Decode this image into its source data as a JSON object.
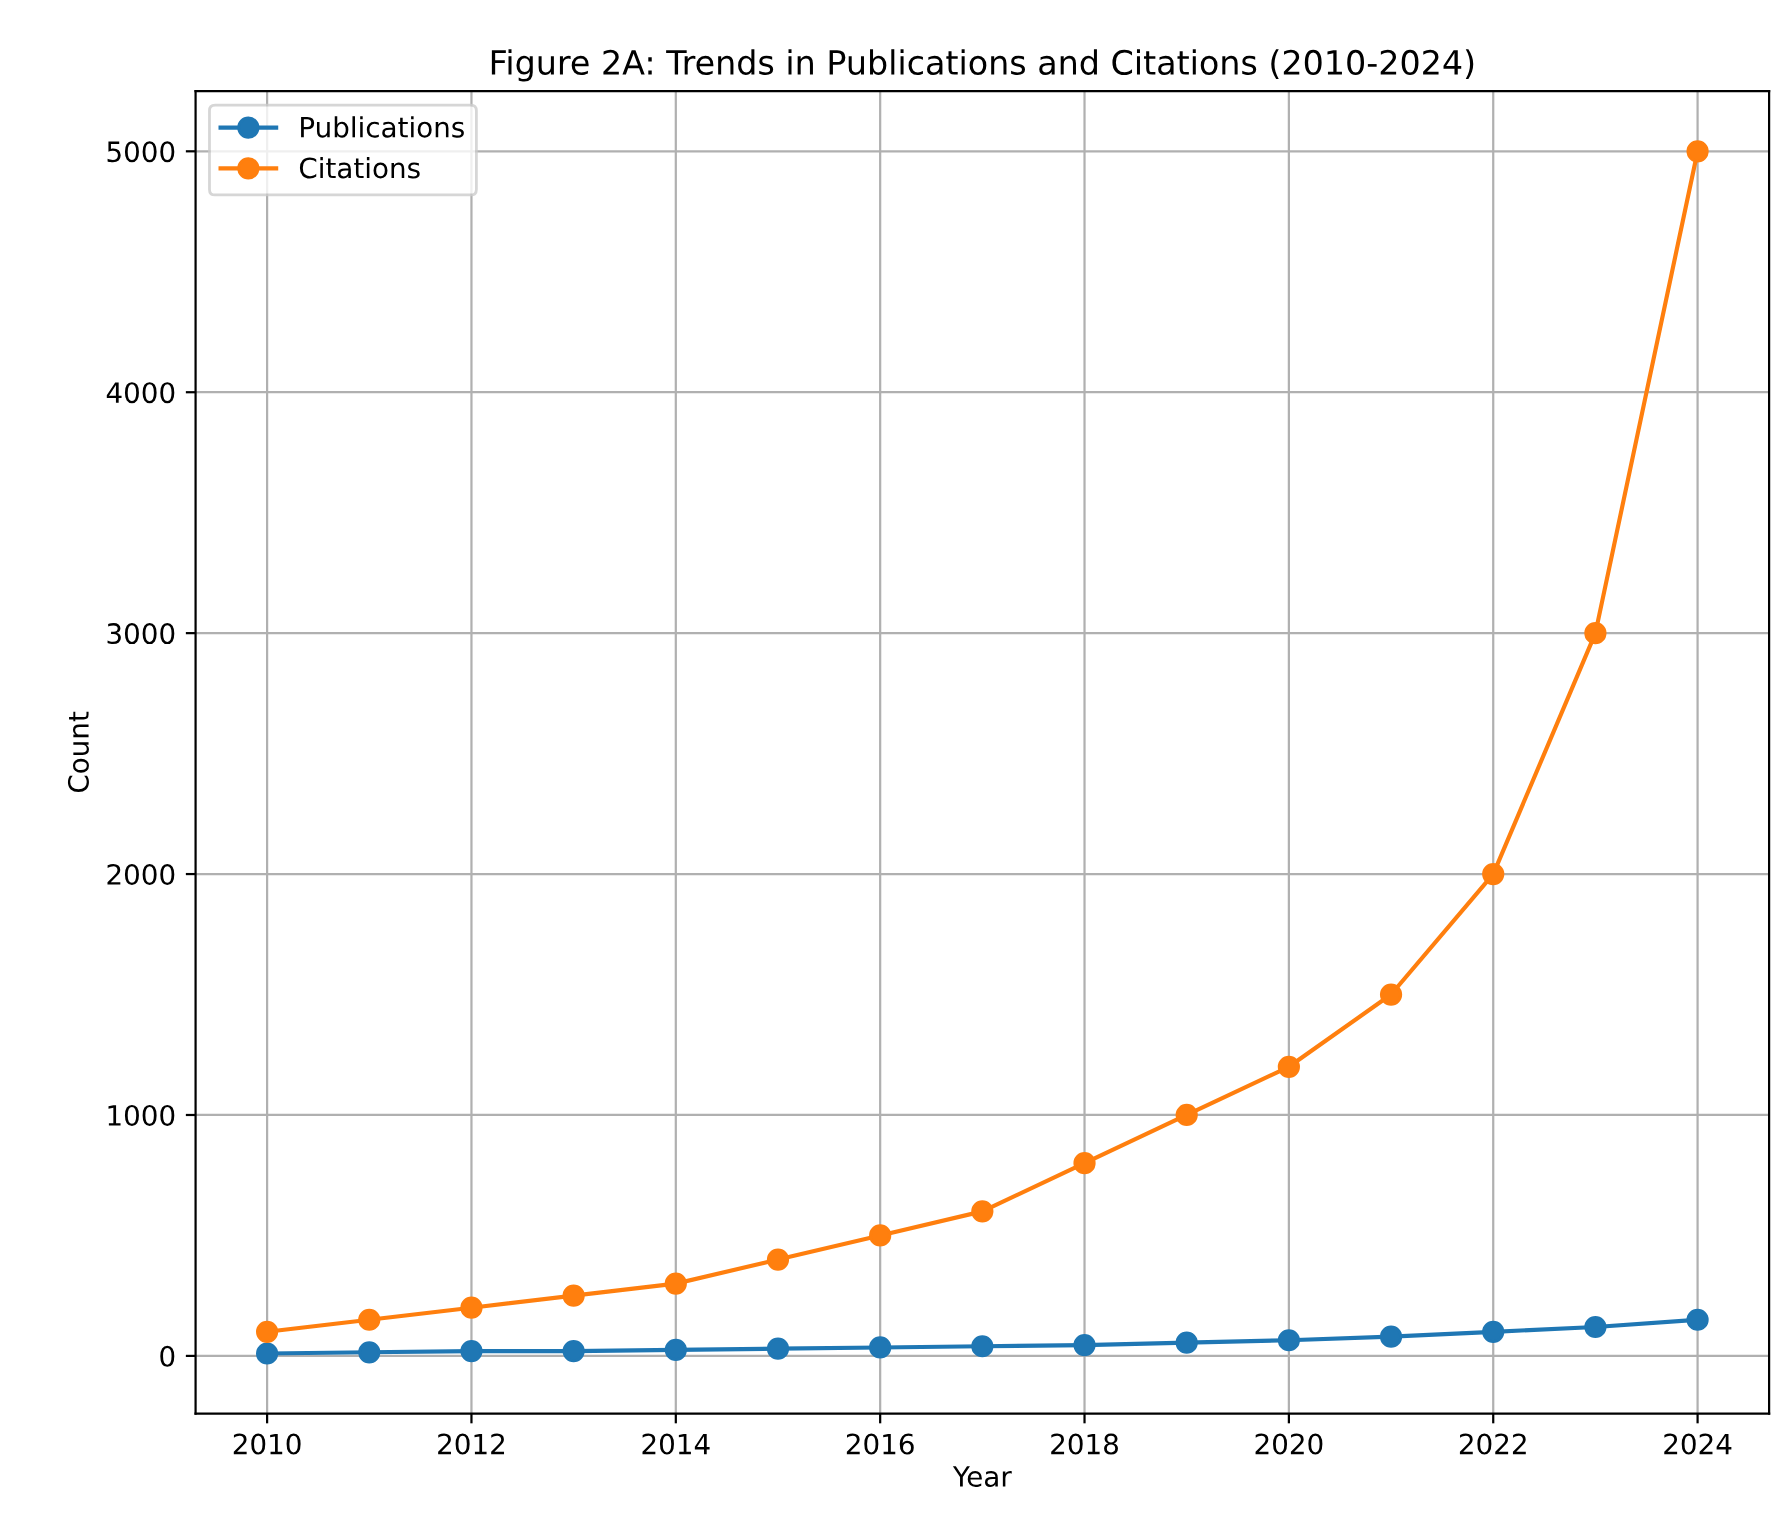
{
  "chart_data": {
    "type": "line",
    "title": "Figure 2A: Trends in Publications and Citations (2010-2024)",
    "xlabel": "Year",
    "ylabel": "Count",
    "x": [
      2010,
      2011,
      2012,
      2013,
      2014,
      2015,
      2016,
      2017,
      2018,
      2019,
      2020,
      2021,
      2022,
      2023,
      2024
    ],
    "series": [
      {
        "name": "Publications",
        "color": "#1f77b4",
        "values": [
          10,
          15,
          20,
          20,
          25,
          30,
          35,
          40,
          45,
          55,
          65,
          80,
          100,
          120,
          150
        ]
      },
      {
        "name": "Citations",
        "color": "#ff7f0e",
        "values": [
          100,
          150,
          200,
          250,
          300,
          400,
          500,
          600,
          800,
          1000,
          1200,
          1500,
          2000,
          3000,
          5000
        ]
      }
    ],
    "xlim": [
      2009.3,
      2024.7
    ],
    "xticks": [
      2010,
      2012,
      2014,
      2016,
      2018,
      2020,
      2022,
      2024
    ],
    "ylim": [
      -239.5,
      5249.5
    ],
    "yticks": [
      0,
      1000,
      2000,
      3000,
      4000,
      5000
    ],
    "grid": true,
    "legend": "top left",
    "marker": "circle",
    "line_style": "solid"
  }
}
